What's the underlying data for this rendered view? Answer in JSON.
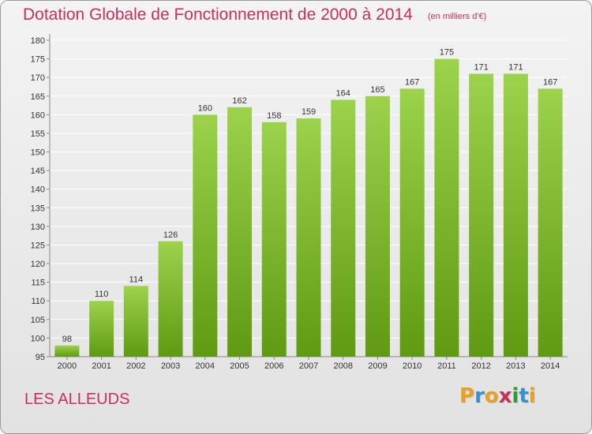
{
  "header": {
    "title": "Dotation Globale de Fonctionnement de 2000 à 2014",
    "subtitle": "(en milliers d'€)"
  },
  "footer": {
    "commune": "LES ALLEUDS",
    "logo_letters": [
      "P",
      "r",
      "o",
      "x",
      "i",
      "t",
      "i"
    ],
    "logo_colors": [
      "#e8a020",
      "#3a8fd0",
      "#e8a020",
      "#c8305c",
      "#2f9a3a",
      "#3a8fd0",
      "#e8a020"
    ]
  },
  "colors": {
    "accent": "#c8305c",
    "bar_light": "#9cd24c",
    "bar_dark": "#5f9a12",
    "grid": "#ffffff",
    "axis_text": "#333333"
  },
  "chart_data": {
    "type": "bar",
    "title": "Dotation Globale de Fonctionnement de 2000 à 2014",
    "subtitle": "(en milliers d'€)",
    "categories": [
      "2000",
      "2001",
      "2002",
      "2003",
      "2004",
      "2005",
      "2006",
      "2007",
      "2008",
      "2009",
      "2010",
      "2011",
      "2012",
      "2013",
      "2014"
    ],
    "values": [
      98,
      110,
      114,
      126,
      160,
      162,
      158,
      159,
      164,
      165,
      167,
      175,
      171,
      171,
      167
    ],
    "ylim": [
      95,
      180
    ],
    "ytick_step": 5,
    "grid": true,
    "legend": "none",
    "xlabel": "",
    "ylabel": ""
  }
}
